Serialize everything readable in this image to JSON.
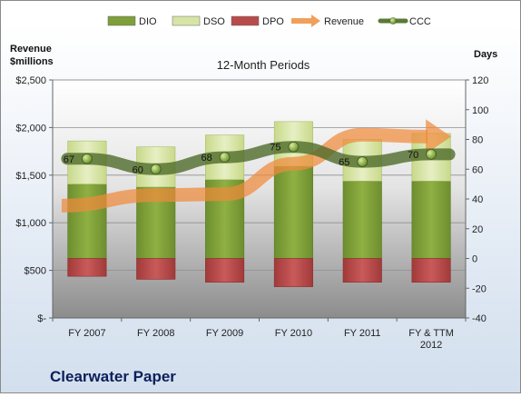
{
  "chart_data": {
    "type": "bar",
    "title": "12-Month Periods",
    "company": "Clearwater Paper",
    "categories": [
      [
        "FY 2007"
      ],
      [
        "FY 2008"
      ],
      [
        "FY 2009"
      ],
      [
        "FY 2010"
      ],
      [
        "FY 2011"
      ],
      [
        "FY & TTM",
        "2012"
      ]
    ],
    "left_axis": {
      "label": [
        "Revenue",
        "$millions"
      ],
      "min": 0,
      "max": 2500,
      "step": 500,
      "tick_labels": [
        "$-",
        "$500",
        "$1,000",
        "$1,500",
        "$2,000",
        "$2,500"
      ]
    },
    "right_axis": {
      "label": "Days",
      "min": -40,
      "max": 120,
      "step": 20,
      "tick_labels": [
        "-40",
        "-20",
        "0",
        "20",
        "40",
        "60",
        "80",
        "100",
        "120"
      ]
    },
    "legend": {
      "placement": "top",
      "items": [
        {
          "key": "dio",
          "label": "DIO",
          "color": "#7f9f3a"
        },
        {
          "key": "dso",
          "label": "DSO",
          "color": "#d6e4a6"
        },
        {
          "key": "dpo",
          "label": "DPO",
          "color": "#b84b4b"
        },
        {
          "key": "revenue",
          "label": "Revenue",
          "color": "#f0a05a"
        },
        {
          "key": "ccc",
          "label": "CCC",
          "color": "#5a7a35"
        }
      ]
    },
    "series": [
      {
        "name": "DIO",
        "axis": "days",
        "values": [
          50,
          48,
          53,
          62,
          52,
          52
        ]
      },
      {
        "name": "DSO",
        "axis": "days",
        "values": [
          29,
          27,
          30,
          30,
          28,
          32
        ]
      },
      {
        "name": "DPO",
        "axis": "days",
        "values": [
          -12,
          -14,
          -16,
          -19,
          -16,
          -16
        ]
      },
      {
        "name": "Revenue",
        "axis": "revenue",
        "values": [
          1180,
          1290,
          1300,
          1620,
          1925,
          1905
        ]
      },
      {
        "name": "CCC",
        "axis": "days",
        "values": [
          67,
          60,
          68,
          75,
          65,
          70
        ],
        "data_labels": [
          "67",
          "60",
          "68",
          "75",
          "65",
          "70"
        ]
      }
    ]
  }
}
